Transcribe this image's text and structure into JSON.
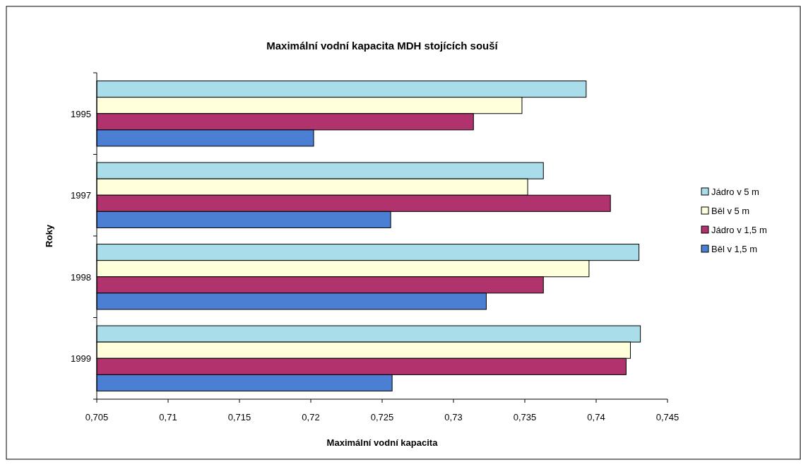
{
  "chart_data": {
    "type": "bar",
    "orientation": "horizontal",
    "title": "Maximální vodní kapacita MDH stojících souší",
    "xlabel": "Maximální vodní kapacita",
    "ylabel": "Roky",
    "categories": [
      "1995",
      "1997",
      "1998",
      "1999"
    ],
    "series": [
      {
        "name": "Jádro v 5 m",
        "color": "#a8dde9",
        "values": [
          0.7393,
          0.7363,
          0.743,
          0.7431
        ]
      },
      {
        "name": "Běl v 5 m",
        "color": "#ffffdc",
        "values": [
          0.7348,
          0.7352,
          0.7395,
          0.7424
        ]
      },
      {
        "name": "Jádro v 1,5 m",
        "color": "#b0336e",
        "values": [
          0.7314,
          0.741,
          0.7363,
          0.7421
        ]
      },
      {
        "name": "Běl v 1,5 m",
        "color": "#4a7fd4",
        "values": [
          0.7202,
          0.7256,
          0.7323,
          0.7257
        ]
      }
    ],
    "xlim": [
      0.705,
      0.745
    ],
    "xticks": [
      {
        "value": 0.705,
        "label": "0,705"
      },
      {
        "value": 0.71,
        "label": "0,71"
      },
      {
        "value": 0.715,
        "label": "0,715"
      },
      {
        "value": 0.72,
        "label": "0,72"
      },
      {
        "value": 0.725,
        "label": "0,725"
      },
      {
        "value": 0.73,
        "label": "0,73"
      },
      {
        "value": 0.735,
        "label": "0,735"
      },
      {
        "value": 0.74,
        "label": "0,74"
      },
      {
        "value": 0.745,
        "label": "0,745"
      }
    ],
    "legend": "right",
    "grid": false
  }
}
